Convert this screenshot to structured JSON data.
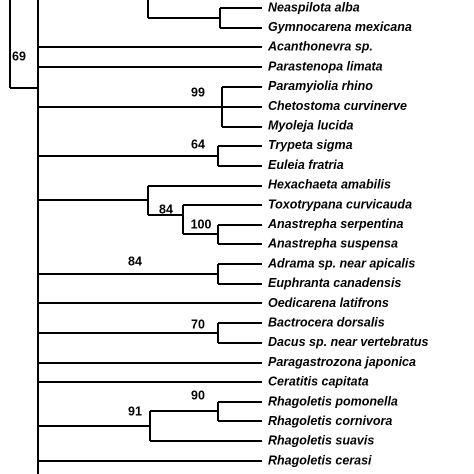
{
  "taxa": [
    "Neaspilota alba",
    "Gymnocarena mexicana",
    "Acanthonevra sp.",
    "Parastenopa limata",
    "Paramyiolia rhino",
    "Chetostoma curvinerve",
    "Myoleja lucida",
    "Trypeta sigma",
    "Euleia fratria",
    "Hexachaeta amabilis",
    "Toxotrypana curvicauda",
    "Anastrepha serpentina",
    "Anastrepha suspensa",
    "Adrama sp. near apicalis",
    "Euphranta canadensis",
    "Oedicarena latifrons",
    "Bactrocera dorsalis",
    "Dacus sp. near vertebratus",
    "Paragastrozona japonica",
    "Ceratitis capitata",
    "Rhagoletis pomonella",
    "Rhagoletis cornivora",
    "Rhagoletis suavis",
    "Rhagoletis cerasi"
  ],
  "support": [
    "69",
    "99",
    "64",
    "84",
    "100",
    "84",
    "70",
    "90",
    "91"
  ]
}
